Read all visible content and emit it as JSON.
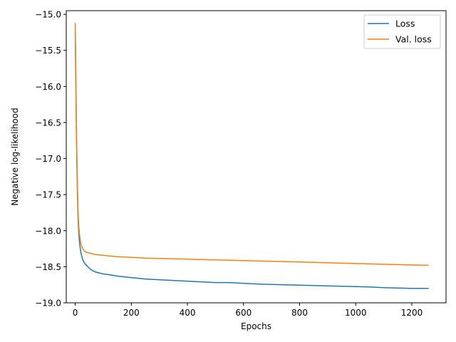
{
  "chart_data": {
    "type": "line",
    "xlabel": "Epochs",
    "ylabel": "Negative log-likelihood",
    "xlim": [
      -32,
      1322
    ],
    "ylim": [
      -19.0,
      -14.95
    ],
    "xticks": [
      0,
      200,
      400,
      600,
      800,
      1000,
      1200
    ],
    "yticks": [
      -19.0,
      -18.5,
      -18.0,
      -17.5,
      -17.0,
      -16.5,
      -16.0,
      -15.5,
      -15.0
    ],
    "xtick_labels": [
      "0",
      "200",
      "400",
      "600",
      "800",
      "1000",
      "1200"
    ],
    "ytick_labels": [
      "−19.0",
      "−18.5",
      "−18.0",
      "−17.5",
      "−17.0",
      "−16.5",
      "−16.0",
      "−15.5",
      "−15.0"
    ],
    "grid": false,
    "legend_position": "top-right",
    "series": [
      {
        "name": "Loss",
        "color": "#1f77b4",
        "x": [
          0,
          2,
          4,
          6,
          8,
          10,
          12,
          15,
          18,
          21,
          25,
          30,
          35,
          40,
          50,
          60,
          70,
          80,
          100,
          120,
          150,
          200,
          250,
          300,
          350,
          400,
          450,
          500,
          550,
          600,
          650,
          700,
          750,
          800,
          850,
          900,
          950,
          1000,
          1050,
          1100,
          1150,
          1200,
          1260
        ],
        "y": [
          -15.25,
          -15.9,
          -16.6,
          -17.1,
          -17.5,
          -17.8,
          -18.0,
          -18.15,
          -18.25,
          -18.32,
          -18.38,
          -18.43,
          -18.46,
          -18.48,
          -18.52,
          -18.55,
          -18.57,
          -18.58,
          -18.6,
          -18.61,
          -18.63,
          -18.65,
          -18.67,
          -18.68,
          -18.69,
          -18.7,
          -18.71,
          -18.72,
          -18.72,
          -18.73,
          -18.74,
          -18.745,
          -18.75,
          -18.755,
          -18.76,
          -18.765,
          -18.77,
          -18.775,
          -18.78,
          -18.79,
          -18.795,
          -18.8,
          -18.8
        ]
      },
      {
        "name": "Val. loss",
        "color": "#ff7f0e",
        "x": [
          0,
          2,
          4,
          6,
          8,
          10,
          12,
          15,
          18,
          21,
          25,
          30,
          35,
          40,
          50,
          60,
          70,
          80,
          100,
          120,
          150,
          200,
          250,
          300,
          350,
          400,
          450,
          500,
          550,
          600,
          650,
          700,
          750,
          800,
          850,
          900,
          950,
          1000,
          1050,
          1100,
          1150,
          1200,
          1260
        ],
        "y": [
          -15.12,
          -15.75,
          -16.45,
          -17.0,
          -17.4,
          -17.7,
          -17.9,
          -18.05,
          -18.13,
          -18.19,
          -18.24,
          -18.27,
          -18.29,
          -18.3,
          -18.31,
          -18.32,
          -18.33,
          -18.335,
          -18.34,
          -18.35,
          -18.36,
          -18.37,
          -18.38,
          -18.385,
          -18.39,
          -18.395,
          -18.4,
          -18.405,
          -18.41,
          -18.415,
          -18.42,
          -18.425,
          -18.43,
          -18.435,
          -18.44,
          -18.445,
          -18.45,
          -18.455,
          -18.46,
          -18.465,
          -18.47,
          -18.475,
          -18.48
        ]
      }
    ]
  }
}
